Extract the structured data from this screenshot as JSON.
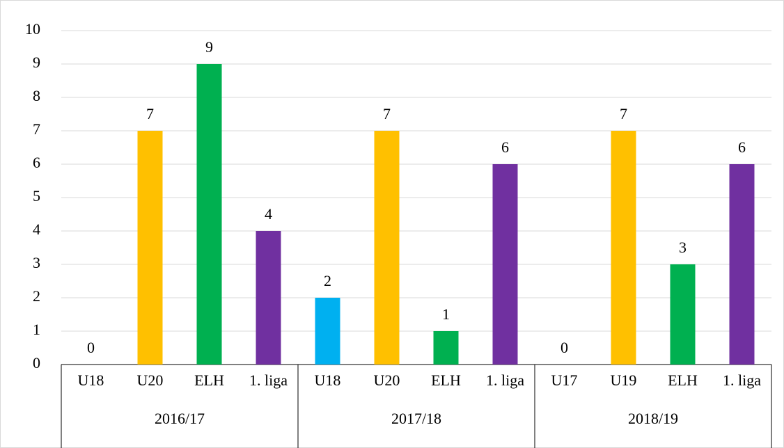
{
  "chart_data": {
    "type": "bar",
    "categories": [
      "U18",
      "U20",
      "ELH",
      "1. liga",
      "U18",
      "U20",
      "ELH",
      "1. liga",
      "U17",
      "U19",
      "ELH",
      "1. liga"
    ],
    "groups": [
      {
        "name": "2016/17",
        "size": 4
      },
      {
        "name": "2017/18",
        "size": 4
      },
      {
        "name": "2018/19",
        "size": 4
      }
    ],
    "values": [
      0,
      7,
      9,
      4,
      2,
      7,
      1,
      6,
      0,
      7,
      3,
      6
    ],
    "colors": [
      "#00b0f0",
      "#ffc000",
      "#00b050",
      "#7030a0",
      "#00b0f0",
      "#ffc000",
      "#00b050",
      "#7030a0",
      "#00b0f0",
      "#ffc000",
      "#00b050",
      "#7030a0"
    ],
    "ylim": [
      0,
      10
    ],
    "yticks": [
      0,
      1,
      2,
      3,
      4,
      5,
      6,
      7,
      8,
      9,
      10
    ],
    "grid": true
  }
}
